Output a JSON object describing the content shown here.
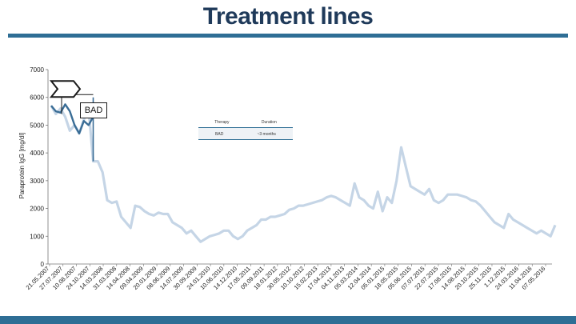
{
  "page": {
    "title": "Treatment lines"
  },
  "chart_data": {
    "type": "line",
    "ylabel": "Paraprotein IgG [mg/dl]",
    "ylim": [
      0,
      7000
    ],
    "y_ticks": [
      0,
      1000,
      2000,
      3000,
      4000,
      5000,
      6000,
      7000
    ],
    "x_tick_labels": [
      "21.05.2007",
      "27.07.2007",
      "10.08.2007",
      "24.10.2007",
      "14.03.2008",
      "31.03.2008",
      "14.04.2008",
      "09.04.2009",
      "20.01.2009",
      "08.06.2009",
      "14.07.2009",
      "30.09.2009",
      "24.01.2010",
      "10.06.2010",
      "14.12.2010",
      "17.05.2011",
      "09.09.2011",
      "18.01.2012",
      "30.05.2012",
      "10.10.2012",
      "15.02.2013",
      "17.04.2013",
      "04.11.2013",
      "05.03.2014",
      "12.04.2014",
      "05.01.2015",
      "18.05.2015",
      "05.06.2015",
      "07.07.2015",
      "22.07.2015",
      "17.08.2015",
      "14.08.2015",
      "20.10.2015",
      "25.11.2015",
      "1.12.2015",
      "24.03.2016",
      "11.04.2016",
      "07.05.2016"
    ],
    "series": [
      {
        "color": "#c5d5e6",
        "values": [
          5700,
          5400,
          5600,
          5300,
          4800,
          5000,
          4700,
          5200,
          5600,
          3700,
          3700,
          3300,
          2300,
          2200,
          2250,
          1700,
          1500,
          1300,
          2100,
          2050,
          1900,
          1800,
          1750,
          1850,
          1800,
          1800,
          1500,
          1400,
          1300,
          1100,
          1200,
          1000,
          800,
          900,
          1000,
          1050,
          1100,
          1200,
          1200,
          1000,
          900,
          1000,
          1200,
          1300,
          1400,
          1600,
          1600,
          1700,
          1700,
          1750,
          1800,
          1950,
          2000,
          2100,
          2100,
          2150,
          2200,
          2250,
          2300,
          2400,
          2450,
          2400,
          2300,
          2200,
          2100,
          2900,
          2400,
          2300,
          2100,
          2000,
          2600,
          1900,
          2400,
          2200,
          3000,
          4200,
          3500,
          2800,
          2700,
          2600,
          2500,
          2700,
          2300,
          2200,
          2300,
          2500,
          2500,
          2500,
          2450,
          2400,
          2300,
          2250,
          2100,
          1900,
          1700,
          1500,
          1400,
          1300,
          1800,
          1600,
          1500,
          1400,
          1300,
          1200,
          1100,
          1200,
          1100,
          1000,
          1400
        ]
      },
      {
        "color": "#3a6d96",
        "values": [
          5700,
          5500,
          5450,
          5750,
          5500,
          5000,
          4700,
          5150,
          5000,
          5300
        ]
      }
    ],
    "annotations": [
      {
        "label": "BAD"
      }
    ]
  },
  "legend_table": {
    "headers": [
      "Therapy",
      "Duration"
    ],
    "row": [
      "BAD",
      "~3 months"
    ]
  }
}
